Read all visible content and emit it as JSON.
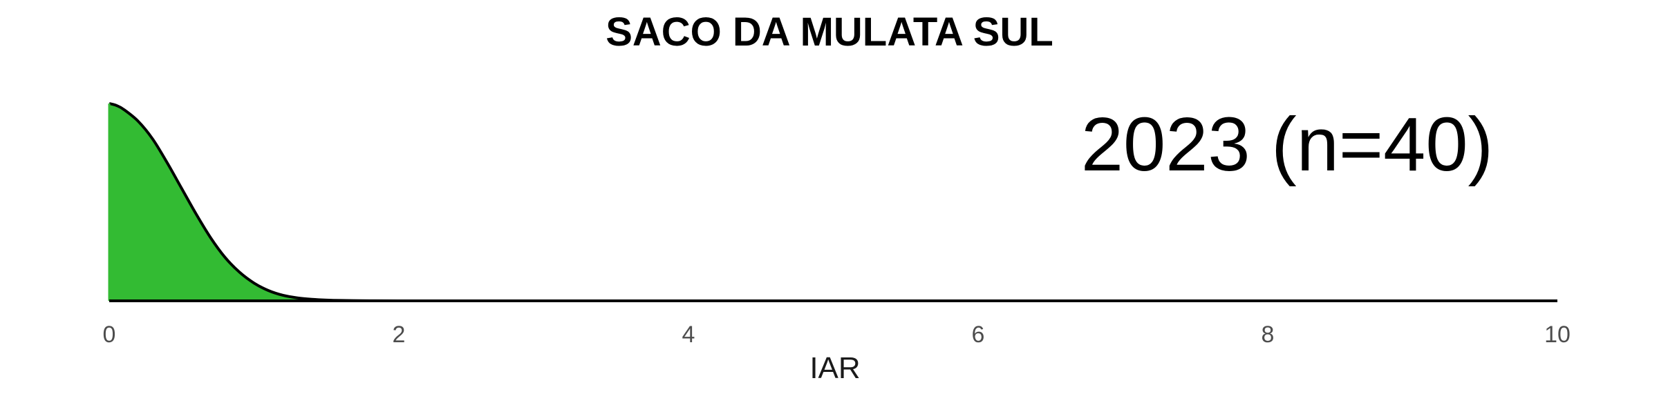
{
  "chart_data": {
    "type": "area",
    "title": "SACO DA MULATA SUL",
    "xlabel": "IAR",
    "ylabel": "",
    "annotation": "2023 (n=40)",
    "xlim": [
      0,
      10
    ],
    "x_ticks": [
      0,
      2,
      4,
      6,
      8,
      10
    ],
    "x_tick_labels": [
      "0",
      "2",
      "4",
      "6",
      "8",
      "10"
    ],
    "ylim": [
      0,
      1.05
    ],
    "grid": false,
    "legend": "none",
    "fill_color": "#33bb33",
    "line_color": "#000000",
    "series": [
      {
        "x": [
          0,
          0.05,
          0.1,
          0.2,
          0.3,
          0.4,
          0.5,
          0.6,
          0.7,
          0.8,
          0.9,
          1.0,
          1.1,
          1.2,
          1.3,
          1.4,
          1.5,
          1.6,
          1.8,
          2.0,
          3.0,
          4.0,
          6.0,
          8.0,
          10.0
        ],
        "y": [
          1.0,
          0.99,
          0.97,
          0.91,
          0.82,
          0.7,
          0.57,
          0.44,
          0.32,
          0.22,
          0.145,
          0.09,
          0.052,
          0.028,
          0.015,
          0.008,
          0.004,
          0.002,
          0.0005,
          0.0001,
          0,
          0,
          0,
          0,
          0
        ]
      }
    ]
  }
}
